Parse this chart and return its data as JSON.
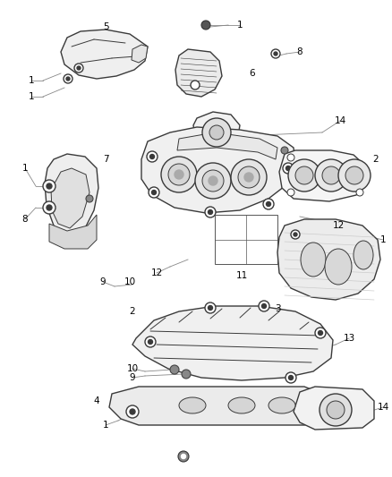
{
  "bg_color": "#ffffff",
  "figure_width": 4.38,
  "figure_height": 5.33,
  "dpi": 100,
  "line_color": "#3a3a3a",
  "label_color": "#000000",
  "callout_line_color": "#888888"
}
